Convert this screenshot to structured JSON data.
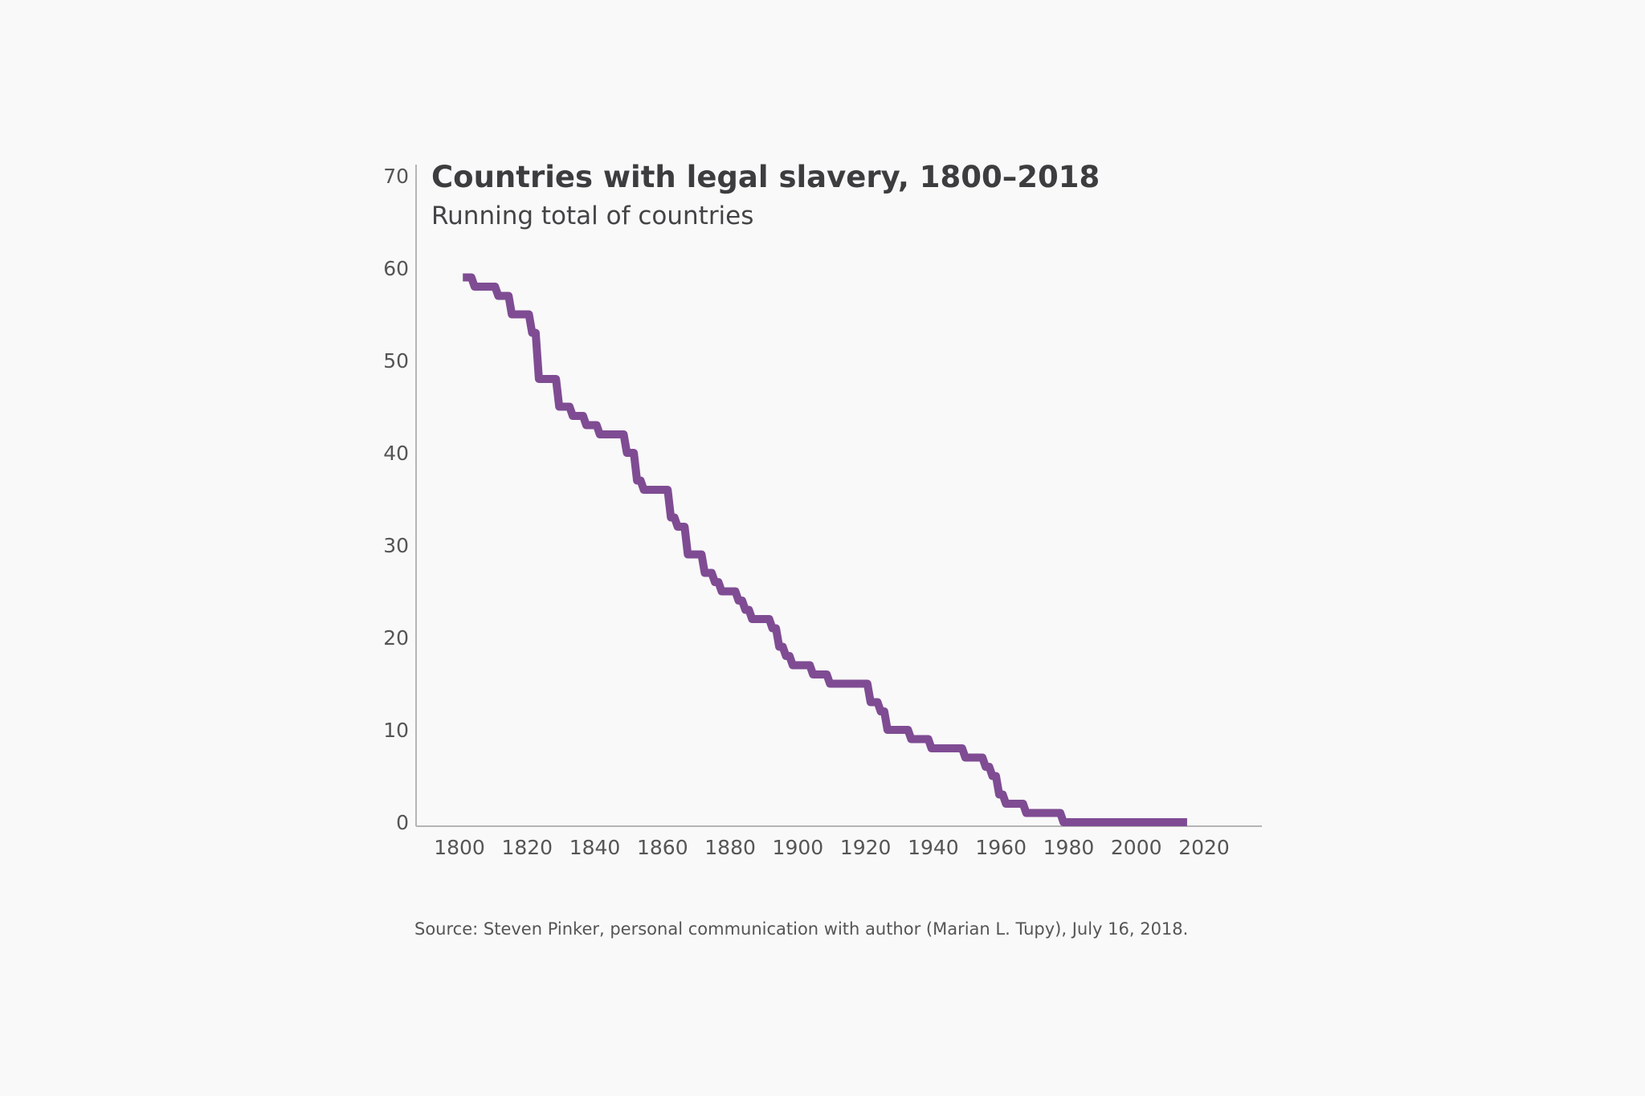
{
  "chart_data": {
    "type": "line",
    "step": true,
    "title": "Countries with legal slavery, 1800–2018",
    "subtitle": "Running total of countries",
    "xlabel": "",
    "ylabel": "",
    "xlim": [
      1793,
      2037
    ],
    "ylim": [
      0,
      70
    ],
    "x_ticks": [
      1800,
      1820,
      1840,
      1860,
      1880,
      1900,
      1920,
      1940,
      1960,
      1980,
      2000,
      2020
    ],
    "y_ticks": [
      0,
      10,
      20,
      30,
      40,
      50,
      60,
      70
    ],
    "grid": false,
    "line_color": "#7f4c93",
    "points": [
      [
        1801,
        59
      ],
      [
        1804,
        58
      ],
      [
        1811,
        57
      ],
      [
        1815,
        55
      ],
      [
        1821,
        53
      ],
      [
        1823,
        48
      ],
      [
        1829,
        45
      ],
      [
        1833,
        44
      ],
      [
        1837,
        43
      ],
      [
        1841,
        42
      ],
      [
        1849,
        40
      ],
      [
        1852,
        37
      ],
      [
        1854,
        36
      ],
      [
        1862,
        33
      ],
      [
        1864,
        32
      ],
      [
        1867,
        29
      ],
      [
        1872,
        27
      ],
      [
        1875,
        26
      ],
      [
        1877,
        25
      ],
      [
        1882,
        24
      ],
      [
        1884,
        23
      ],
      [
        1886,
        22
      ],
      [
        1892,
        21
      ],
      [
        1894,
        19
      ],
      [
        1896,
        18
      ],
      [
        1898,
        17
      ],
      [
        1904,
        16
      ],
      [
        1909,
        15
      ],
      [
        1921,
        13
      ],
      [
        1924,
        12
      ],
      [
        1926,
        10
      ],
      [
        1933,
        9
      ],
      [
        1939,
        8
      ],
      [
        1949,
        7
      ],
      [
        1955,
        6
      ],
      [
        1957,
        5
      ],
      [
        1959,
        3
      ],
      [
        1961,
        2
      ],
      [
        1967,
        1
      ],
      [
        1978,
        0
      ],
      [
        2015,
        0
      ]
    ]
  },
  "source": "Source: Steven Pinker, personal communication with author (Marian L. Tupy), July 16, 2018."
}
